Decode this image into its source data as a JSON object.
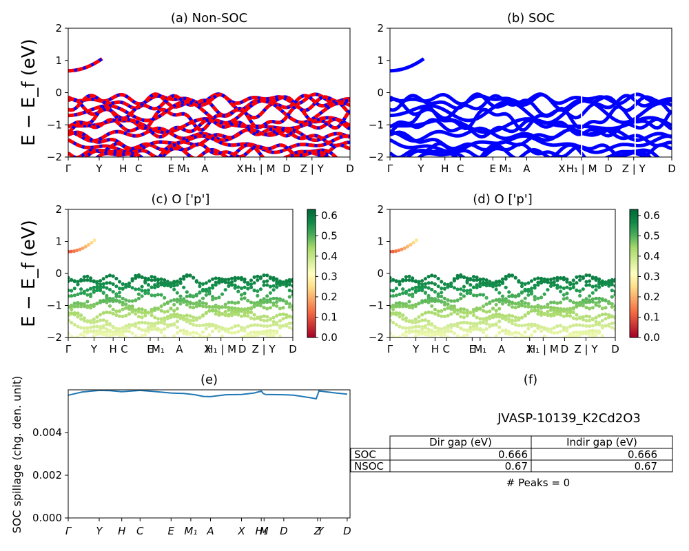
{
  "colors": {
    "blue": "#0000ff",
    "red": "#ff0000",
    "line": "#1f77b4"
  },
  "ylabel_energy": "E − E_f (eV)",
  "chart_data": [
    {
      "id": "a",
      "type": "line",
      "title": "(a) Non-SOC",
      "ylim": [
        -2,
        2
      ],
      "yticks": [
        "−2",
        "−1",
        "0",
        "1",
        "2"
      ],
      "kpath": [
        {
          "label": "Γ",
          "x": 0.0
        },
        {
          "label": "Y",
          "x": 0.11
        },
        {
          "label": "H",
          "x": 0.195
        },
        {
          "label": "C",
          "x": 0.25
        },
        {
          "label": "E",
          "x": 0.365
        },
        {
          "label": "M₁",
          "x": 0.41
        },
        {
          "label": "A",
          "x": 0.485
        },
        {
          "label": "X",
          "x": 0.61
        },
        {
          "label": "H₁ | M",
          "x": 0.68
        },
        {
          "label": "D",
          "x": 0.775
        },
        {
          "label": "Z | Y",
          "x": 0.865
        },
        {
          "label": "D",
          "x": 1.0
        }
      ],
      "style": "dashed-red-over-blue"
    },
    {
      "id": "b",
      "type": "line",
      "title": "(b) SOC",
      "ylim": [
        -2,
        2
      ],
      "yticks": [
        "−2",
        "−1",
        "0",
        "1",
        "2"
      ],
      "kpath": [
        {
          "label": "Γ",
          "x": 0.0
        },
        {
          "label": "Y",
          "x": 0.11
        },
        {
          "label": "H",
          "x": 0.195
        },
        {
          "label": "C",
          "x": 0.25
        },
        {
          "label": "E",
          "x": 0.365
        },
        {
          "label": "M₁",
          "x": 0.41
        },
        {
          "label": "A",
          "x": 0.485
        },
        {
          "label": "X",
          "x": 0.61
        },
        {
          "label": "H₁ | M",
          "x": 0.68
        },
        {
          "label": "D",
          "x": 0.775
        },
        {
          "label": "Z | Y",
          "x": 0.865
        },
        {
          "label": "D",
          "x": 1.0
        }
      ],
      "style": "solid-blue"
    },
    {
      "id": "c",
      "type": "scatter",
      "title": "(c)  O ['p']",
      "ylim": [
        -2,
        2
      ],
      "yticks": [
        "−2",
        "−1",
        "0",
        "1",
        "2"
      ],
      "colorbar": {
        "range": [
          0.0,
          0.63
        ],
        "ticks": [
          "0.0",
          "0.1",
          "0.2",
          "0.3",
          "0.4",
          "0.5",
          "0.6"
        ],
        "cmap": "RdYlGn"
      },
      "kpath": [
        {
          "label": "Γ",
          "x": 0.0
        },
        {
          "label": "Y",
          "x": 0.115
        },
        {
          "label": "H",
          "x": 0.2
        },
        {
          "label": "C",
          "x": 0.25
        },
        {
          "label": "E",
          "x": 0.365
        },
        {
          "label": "M₁",
          "x": 0.4
        },
        {
          "label": "A",
          "x": 0.495
        },
        {
          "label": "X",
          "x": 0.62
        },
        {
          "label": "H₁ | M",
          "x": 0.68
        },
        {
          "label": "D",
          "x": 0.775
        },
        {
          "label": "Z | Y",
          "x": 0.87
        },
        {
          "label": "D",
          "x": 1.0
        }
      ]
    },
    {
      "id": "d",
      "type": "scatter",
      "title": "(d) O ['p']",
      "ylim": [
        -2,
        2
      ],
      "yticks": [
        "−2",
        "−1",
        "0",
        "1",
        "2"
      ],
      "colorbar": {
        "range": [
          0.0,
          0.63
        ],
        "ticks": [
          "0.0",
          "0.1",
          "0.2",
          "0.3",
          "0.4",
          "0.5",
          "0.6"
        ],
        "cmap": "RdYlGn"
      },
      "kpath": [
        {
          "label": "Γ",
          "x": 0.0
        },
        {
          "label": "Y",
          "x": 0.115
        },
        {
          "label": "H",
          "x": 0.2
        },
        {
          "label": "C",
          "x": 0.25
        },
        {
          "label": "E",
          "x": 0.365
        },
        {
          "label": "M₁",
          "x": 0.4
        },
        {
          "label": "A",
          "x": 0.495
        },
        {
          "label": "X",
          "x": 0.62
        },
        {
          "label": "H₁ | M",
          "x": 0.68
        },
        {
          "label": "D",
          "x": 0.775
        },
        {
          "label": "Z | Y",
          "x": 0.87
        },
        {
          "label": "D",
          "x": 1.0
        }
      ]
    },
    {
      "id": "e",
      "type": "line",
      "title": "(e)",
      "ylabel": "SOC spillage (chg. den. unit)",
      "ylim": [
        0.0,
        0.006
      ],
      "yticks": [
        "0.000",
        "0.002",
        "0.004"
      ],
      "ytick_values": [
        0.0,
        0.002,
        0.004
      ],
      "kpath": [
        {
          "label": "Γ",
          "x": 0.0
        },
        {
          "label": "Y",
          "x": 0.11
        },
        {
          "label": "H",
          "x": 0.19
        },
        {
          "label": "C",
          "x": 0.255
        },
        {
          "label": "E",
          "x": 0.365
        },
        {
          "label": "M₁",
          "x": 0.435
        },
        {
          "label": "A",
          "x": 0.505
        },
        {
          "label": "X",
          "x": 0.615
        },
        {
          "label": "H₁",
          "x": 0.685
        },
        {
          "label": "M",
          "x": 0.695
        },
        {
          "label": "D",
          "x": 0.765
        },
        {
          "label": "Z",
          "x": 0.885
        },
        {
          "label": "Y",
          "x": 0.895
        },
        {
          "label": "D",
          "x": 0.99
        }
      ],
      "series": [
        {
          "x": [
            0.0,
            0.05,
            0.11,
            0.15,
            0.19,
            0.255,
            0.3,
            0.365,
            0.41,
            0.45,
            0.48,
            0.505,
            0.56,
            0.615,
            0.66,
            0.685,
            0.693,
            0.7,
            0.765,
            0.8,
            0.86,
            0.88,
            0.89,
            0.895,
            0.95,
            0.99
          ],
          "y": [
            0.00575,
            0.0059,
            0.00597,
            0.00596,
            0.00591,
            0.00597,
            0.00593,
            0.00585,
            0.00583,
            0.00577,
            0.00569,
            0.00568,
            0.00577,
            0.00578,
            0.00585,
            0.00594,
            0.00582,
            0.00578,
            0.00577,
            0.00575,
            0.00563,
            0.00558,
            0.00595,
            0.00594,
            0.00585,
            0.0058
          ]
        }
      ]
    }
  ],
  "panel_f": {
    "title": "(f)",
    "material": "JVASP-10139_K2Cd2O3",
    "table": {
      "headers": [
        "Dir gap (eV)",
        "Indir gap (eV)"
      ],
      "rows": [
        {
          "label": "SOC",
          "dir": "0.666",
          "indir": "0.666"
        },
        {
          "label": "NSOC",
          "dir": "0.67",
          "indir": "0.67"
        }
      ]
    },
    "peaks": "# Peaks = 0"
  }
}
